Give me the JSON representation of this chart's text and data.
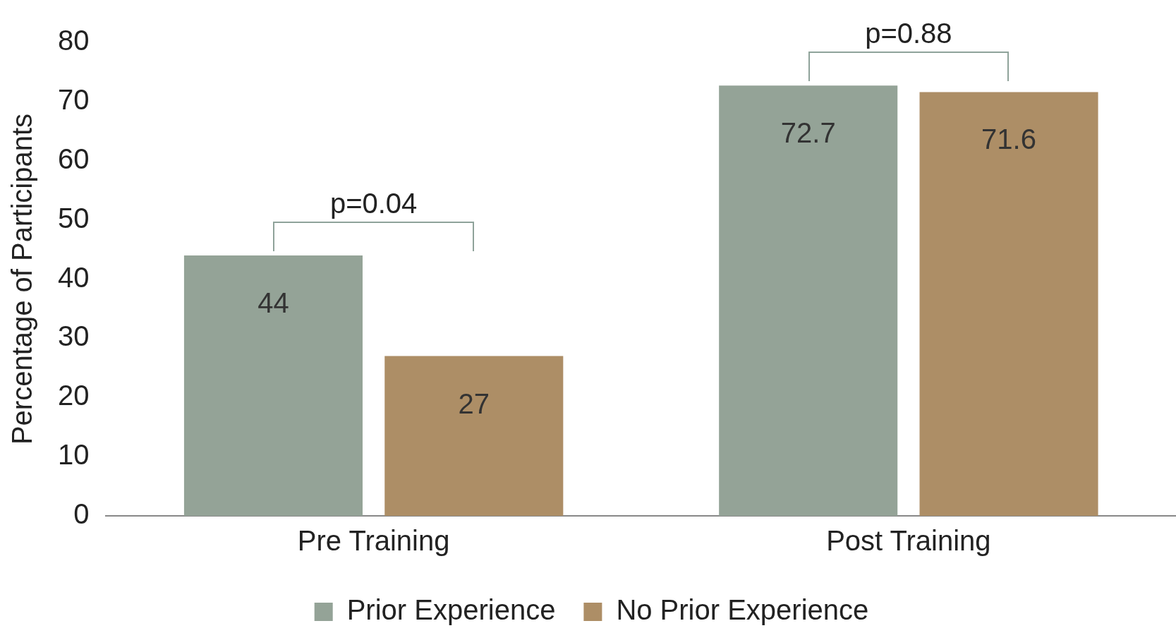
{
  "chart_data": {
    "type": "bar",
    "ylabel": "Percentage of Participants",
    "categories": [
      "Pre Training",
      "Post Training"
    ],
    "series": [
      {
        "name": "Prior Experience",
        "color": "#94a397",
        "values": [
          44,
          72.7
        ]
      },
      {
        "name": "No Prior Experience",
        "color": "#ad8e66",
        "values": [
          27,
          71.6
        ]
      }
    ],
    "ylim": [
      0,
      80
    ],
    "yticks": [
      0,
      10,
      20,
      30,
      40,
      50,
      60,
      70,
      80
    ],
    "grid": false,
    "legend": "bottom",
    "data_labels": true,
    "annotations": [
      "p=0.04",
      "p=0.88"
    ]
  }
}
